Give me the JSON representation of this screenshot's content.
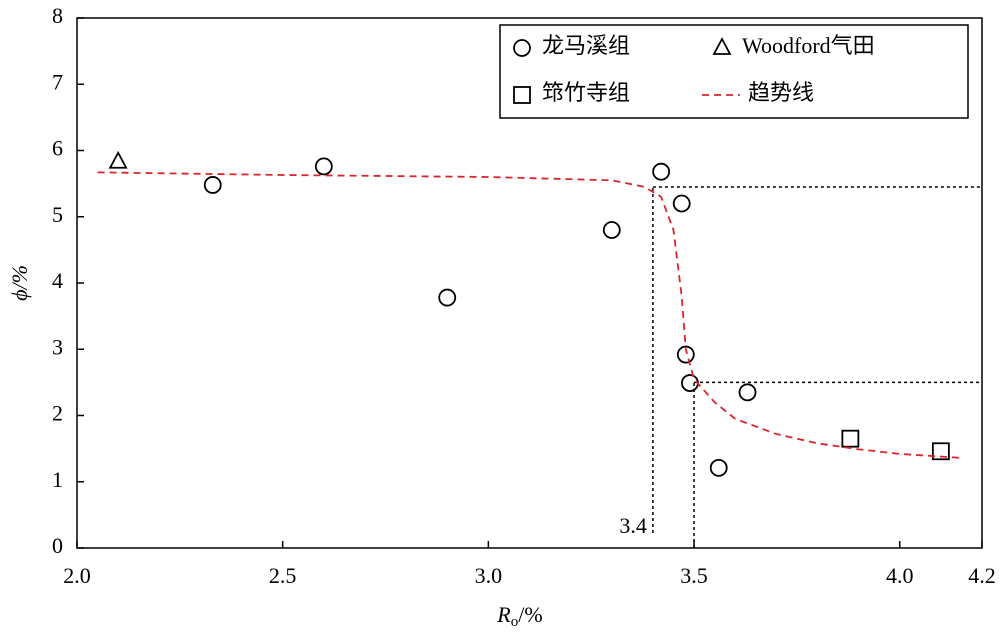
{
  "chart_data": {
    "type": "scatter",
    "x_label": {
      "symbol": "R",
      "subscript": "o",
      "unit": "/%"
    },
    "y_label": "ϕ/%",
    "xlim": [
      2.0,
      4.2
    ],
    "xticks": [
      {
        "value": 2.0,
        "label": "2.0"
      },
      2.5,
      {
        "value": 3.0,
        "label": "3.0"
      },
      3.5,
      {
        "value": 4.0,
        "label": "4.0"
      },
      4.2
    ],
    "ylim": [
      0,
      8
    ],
    "yticks": [
      0,
      1,
      2,
      3,
      4,
      5,
      6,
      7,
      8
    ],
    "legend": "top-right",
    "series": [
      {
        "name": "龙马溪组",
        "marker": "circle",
        "color": "#000000",
        "x": [
          2.33,
          2.6,
          2.9,
          3.3,
          3.42,
          3.47,
          3.48,
          3.49,
          3.63,
          3.56
        ],
        "values": [
          5.48,
          5.76,
          3.78,
          4.8,
          5.68,
          5.2,
          2.92,
          2.49,
          2.35,
          1.21
        ]
      },
      {
        "name": "Woodford气田",
        "marker": "triangle",
        "color": "#000000",
        "x": [
          2.1
        ],
        "values": [
          5.83
        ]
      },
      {
        "name": "筇竹寺组",
        "marker": "square",
        "color": "#000000",
        "x": [
          3.88,
          4.1
        ],
        "values": [
          1.65,
          1.46
        ]
      },
      {
        "name": "趋势线",
        "marker": "dashed-line",
        "color": "#d9262c",
        "x": [
          2.05,
          2.5,
          3.0,
          3.3,
          3.38,
          3.42,
          3.45,
          3.47,
          3.48,
          3.5,
          3.55,
          3.6,
          3.7,
          3.8,
          3.9,
          4.0,
          4.15
        ],
        "values": [
          5.67,
          5.63,
          5.6,
          5.55,
          5.45,
          5.3,
          4.8,
          3.8,
          3.0,
          2.55,
          2.2,
          1.95,
          1.72,
          1.58,
          1.49,
          1.42,
          1.36
        ]
      }
    ],
    "reference_lines": [
      {
        "x": 3.4,
        "y": 5.45
      },
      {
        "x": 3.5,
        "y": 2.5
      }
    ],
    "annotation": "3.4"
  }
}
